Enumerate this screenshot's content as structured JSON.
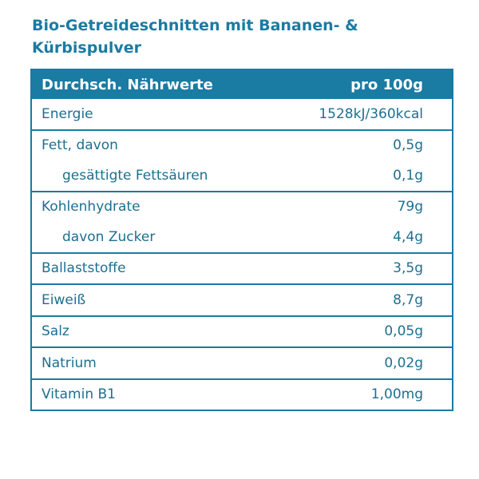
{
  "title": "Bio-Getreideschnitten mit Bananen- & Kürbispulver",
  "header": {
    "label": "Durchsch. Nährwerte",
    "value": "pro 100g"
  },
  "groups": [
    [
      {
        "label": "Energie",
        "value": "1528kJ/360kcal"
      }
    ],
    [
      {
        "label": "Fett, davon",
        "value": "0,5g"
      },
      {
        "label": "gesättigte Fettsäuren",
        "value": "0,1g",
        "sub": true
      }
    ],
    [
      {
        "label": "Kohlenhydrate",
        "value": "79g"
      },
      {
        "label": "davon Zucker",
        "value": "4,4g",
        "sub": true
      }
    ],
    [
      {
        "label": "Ballaststoffe",
        "value": "3,5g"
      }
    ],
    [
      {
        "label": "Eiweiß",
        "value": "8,7g"
      }
    ],
    [
      {
        "label": "Salz",
        "value": "0,05g"
      }
    ],
    [
      {
        "label": "Natrium",
        "value": "0,02g"
      }
    ],
    [
      {
        "label": "Vitamin B1",
        "value": "1,00mg"
      }
    ]
  ],
  "colors": {
    "accent": "#1a7ba3",
    "text": "#1d6f91"
  }
}
